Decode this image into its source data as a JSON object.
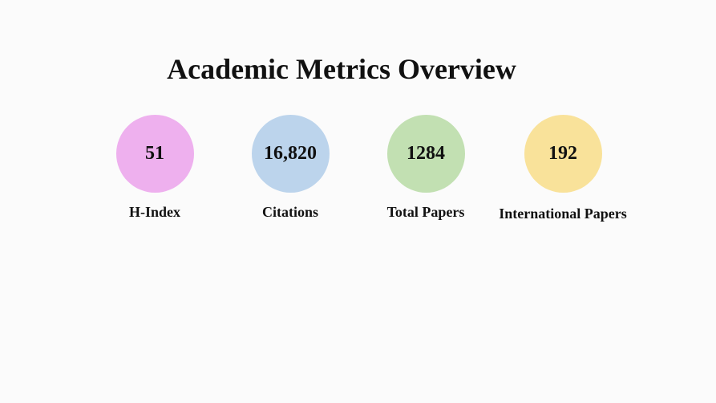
{
  "title": "Academic Metrics Overview",
  "metrics": [
    {
      "value": "51",
      "label": "H-Index",
      "color": "#eeb0ee"
    },
    {
      "value": "16,820",
      "label": "Citations",
      "color": "#bcd4ec"
    },
    {
      "value": "1284",
      "label": "Total Papers",
      "color": "#c2e0b2"
    },
    {
      "value": "192",
      "label": "International Papers",
      "color": "#f9e29a"
    }
  ]
}
